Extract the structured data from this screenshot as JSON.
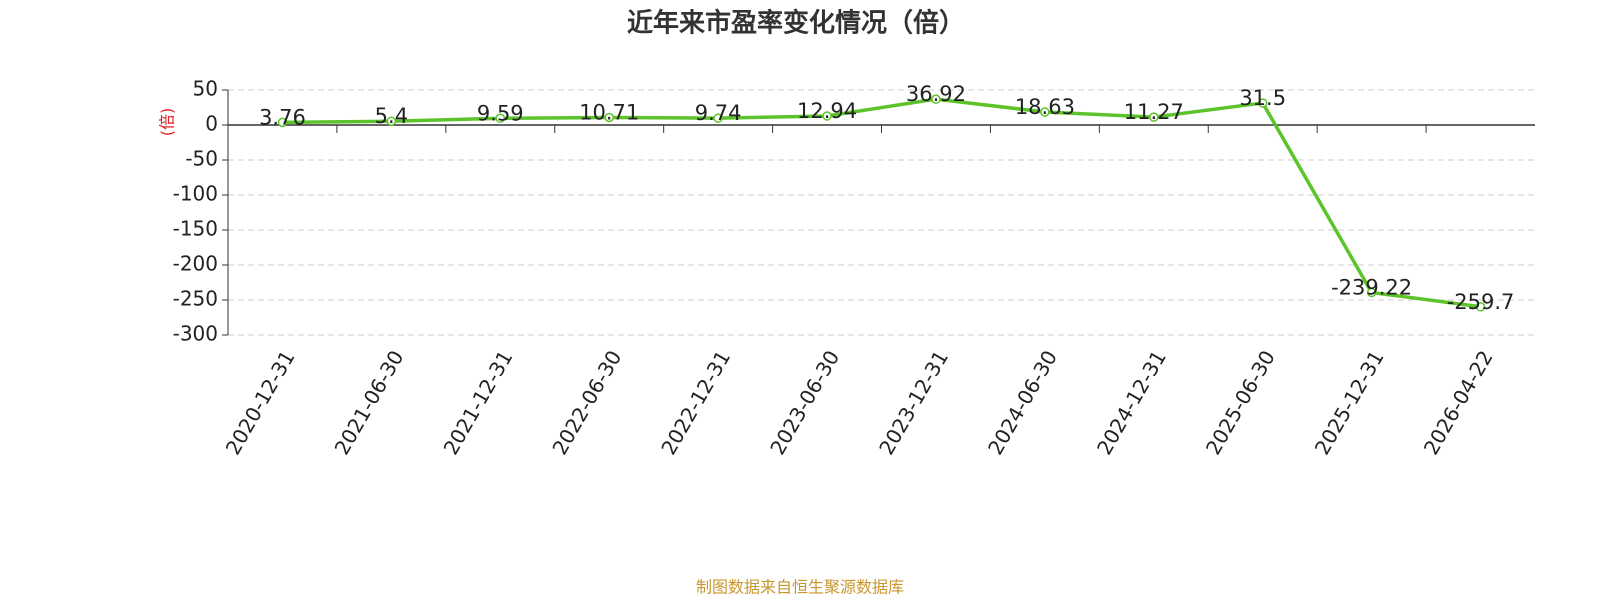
{
  "chart_data": {
    "type": "line",
    "title": "近年来市盈率变化情况（倍）",
    "y_label": "(倍)",
    "categories": [
      "2020-12-31",
      "2021-06-30",
      "2021-12-31",
      "2022-06-30",
      "2022-12-31",
      "2023-06-30",
      "2023-12-31",
      "2024-06-30",
      "2024-12-31",
      "2025-06-30",
      "2025-12-31",
      "2026-04-22"
    ],
    "values": [
      3.76,
      5.4,
      9.59,
      10.71,
      9.74,
      12.94,
      36.92,
      18.63,
      11.27,
      31.5,
      -239.22,
      -259.7
    ],
    "color": "#5cc42a",
    "ylim": [
      -300,
      50
    ],
    "yticks": [
      -300,
      -250,
      -200,
      -150,
      -100,
      -50,
      0,
      50
    ],
    "grid": true,
    "source": "制图数据来自恒生聚源数据库"
  }
}
